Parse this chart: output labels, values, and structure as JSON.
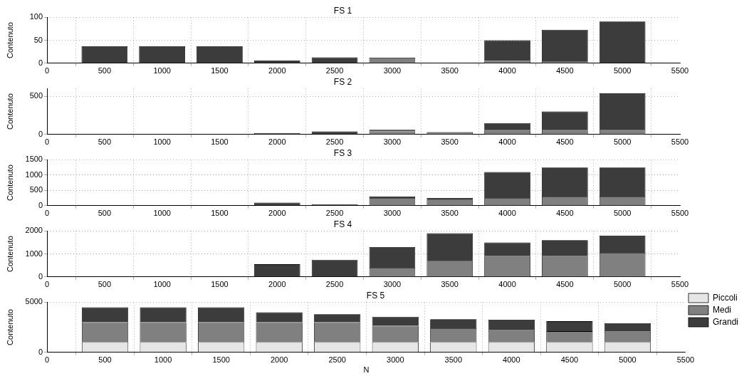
{
  "chart_data": [
    {
      "type": "bar",
      "title": "FS 1",
      "ylabel": "Contenuto",
      "stacked": true,
      "grid": true,
      "legend": false,
      "x": [
        500,
        1000,
        1500,
        2000,
        2500,
        3000,
        3500,
        4000,
        4500,
        5000
      ],
      "xlim": [
        0,
        5500
      ],
      "xticks": [
        0,
        500,
        1000,
        1500,
        2000,
        2500,
        3000,
        3500,
        4000,
        4500,
        5000,
        5500
      ],
      "ylim": [
        0,
        100
      ],
      "yticks": [
        0,
        50,
        100
      ],
      "series": [
        {
          "color": "#808080",
          "values": [
            0,
            0,
            0,
            0,
            0,
            12,
            0,
            5,
            4,
            null
          ]
        },
        {
          "color": "#3c3c3c",
          "values": [
            37,
            37,
            37,
            6,
            13,
            0,
            1,
            45,
            69,
            91
          ]
        }
      ]
    },
    {
      "type": "bar",
      "title": "FS 2",
      "ylabel": "Contenuto",
      "stacked": true,
      "grid": true,
      "legend": false,
      "x": [
        500,
        1000,
        1500,
        2000,
        2500,
        3000,
        3500,
        4000,
        4500,
        5000
      ],
      "xlim": [
        0,
        5500
      ],
      "xticks": [
        0,
        500,
        1000,
        1500,
        2000,
        2500,
        3000,
        3500,
        4000,
        4500,
        5000,
        5500
      ],
      "ylim": [
        0,
        600
      ],
      "yticks": [
        0,
        500
      ],
      "series": [
        {
          "color": "#808080",
          "values": [
            0,
            0,
            0,
            0,
            0,
            40,
            30,
            60,
            60,
            60
          ]
        },
        {
          "color": "#3c3c3c",
          "values": [
            0,
            0,
            0,
            20,
            40,
            20,
            null,
            90,
            240,
            480
          ]
        }
      ]
    },
    {
      "type": "bar",
      "title": "FS 3",
      "ylabel": "Contenuto",
      "stacked": true,
      "grid": true,
      "legend": false,
      "x": [
        500,
        1000,
        1500,
        2000,
        2500,
        3000,
        3500,
        4000,
        4500,
        5000
      ],
      "xlim": [
        0,
        5500
      ],
      "xticks": [
        0,
        500,
        1000,
        1500,
        2000,
        2500,
        3000,
        3500,
        4000,
        4500,
        5000,
        5500
      ],
      "ylim": [
        0,
        1500
      ],
      "yticks": [
        0,
        500,
        1000,
        1500
      ],
      "series": [
        {
          "color": "#808080",
          "values": [
            0,
            0,
            0,
            0,
            0,
            250,
            200,
            250,
            300,
            300
          ]
        },
        {
          "color": "#3c3c3c",
          "values": [
            0,
            0,
            0,
            100,
            50,
            50,
            50,
            850,
            950,
            950
          ]
        }
      ]
    },
    {
      "type": "bar",
      "title": "FS 4",
      "ylabel": "Contenuto",
      "stacked": true,
      "grid": true,
      "legend": false,
      "x": [
        500,
        1000,
        1500,
        2000,
        2500,
        3000,
        3500,
        4000,
        4500,
        5000
      ],
      "xlim": [
        0,
        5500
      ],
      "xticks": [
        0,
        500,
        1000,
        1500,
        2000,
        2500,
        3000,
        3500,
        4000,
        4500,
        5000,
        5500
      ],
      "ylim": [
        0,
        2000
      ],
      "yticks": [
        0,
        1000,
        2000
      ],
      "series": [
        {
          "color": "#808080",
          "values": [
            0,
            0,
            0,
            0,
            0,
            400,
            700,
            900,
            900,
            1050
          ]
        },
        {
          "color": "#3c3c3c",
          "values": [
            0,
            0,
            0,
            550,
            750,
            900,
            1200,
            600,
            700,
            750
          ]
        }
      ]
    },
    {
      "type": "bar",
      "title": "FS 5",
      "xlabel": "N",
      "ylabel": "Contenuto",
      "stacked": true,
      "grid": true,
      "legend": "top right",
      "x": [
        500,
        1000,
        1500,
        2000,
        2500,
        3000,
        3500,
        4000,
        4500,
        5000
      ],
      "xlim": [
        0,
        5500
      ],
      "xticks": [
        0,
        500,
        1000,
        1500,
        2000,
        2500,
        3000,
        3500,
        4000,
        4500,
        5000,
        5500
      ],
      "ylim": [
        0,
        5000
      ],
      "yticks": [
        0,
        5000
      ],
      "series": [
        {
          "name": "Piccoli",
          "color": "#e6e6e6",
          "values": [
            1000,
            1000,
            1000,
            1000,
            1000,
            1000,
            1000,
            1000,
            1000,
            1000
          ]
        },
        {
          "name": "Medi",
          "color": "#808080",
          "values": [
            2000,
            2000,
            2000,
            2000,
            2000,
            1650,
            1400,
            1200,
            1100,
            1050
          ]
        },
        {
          "name": "Grandi",
          "color": "#3c3c3c",
          "values": [
            1500,
            1500,
            1500,
            1000,
            800,
            900,
            900,
            1050,
            1000,
            850
          ]
        }
      ]
    }
  ]
}
